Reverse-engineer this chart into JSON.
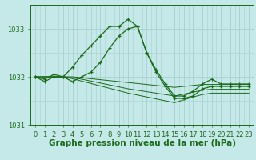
{
  "bg_color": "#c5e8e8",
  "grid_color": "#a8d0d0",
  "line_color": "#1a6b1a",
  "title": "Graphe pression niveau de la mer (hPa)",
  "hours": [
    0,
    1,
    2,
    3,
    4,
    5,
    6,
    7,
    8,
    9,
    10,
    11,
    12,
    13,
    14,
    15,
    16,
    17,
    18,
    19,
    20,
    21,
    22,
    23
  ],
  "series": [
    [
      1032.0,
      1031.9,
      1032.0,
      1032.0,
      1032.2,
      1032.45,
      1032.65,
      1032.85,
      1033.05,
      1033.05,
      1033.2,
      1033.05,
      1032.5,
      1032.15,
      1031.85,
      1031.6,
      1031.6,
      1031.7,
      1031.85,
      1031.95,
      1031.85,
      1031.85,
      1031.85,
      1031.85
    ],
    [
      1032.0,
      1031.95,
      1032.05,
      1032.0,
      1031.9,
      1032.0,
      1032.1,
      1032.3,
      1032.6,
      1032.85,
      1033.0,
      1033.05,
      1032.5,
      1032.1,
      1031.8,
      1031.55,
      1031.55,
      1031.6,
      1031.75,
      1031.8,
      1031.8,
      1031.8,
      1031.8,
      1031.8
    ],
    [
      1032.0,
      1032.0,
      1032.0,
      1032.0,
      1032.0,
      1031.98,
      1031.96,
      1031.94,
      1031.92,
      1031.9,
      1031.88,
      1031.86,
      1031.84,
      1031.82,
      1031.8,
      1031.78,
      1031.8,
      1031.82,
      1031.84,
      1031.84,
      1031.84,
      1031.84,
      1031.84,
      1031.84
    ],
    [
      1032.0,
      1032.0,
      1032.0,
      1032.0,
      1031.98,
      1031.95,
      1031.91,
      1031.87,
      1031.83,
      1031.79,
      1031.75,
      1031.72,
      1031.69,
      1031.66,
      1031.63,
      1031.6,
      1031.64,
      1031.68,
      1031.72,
      1031.74,
      1031.74,
      1031.74,
      1031.74,
      1031.74
    ],
    [
      1032.0,
      1032.0,
      1032.0,
      1032.0,
      1031.96,
      1031.91,
      1031.86,
      1031.81,
      1031.76,
      1031.71,
      1031.66,
      1031.62,
      1031.58,
      1031.54,
      1031.5,
      1031.46,
      1031.52,
      1031.58,
      1031.63,
      1031.66,
      1031.66,
      1031.66,
      1031.66,
      1031.66
    ]
  ],
  "ylim": [
    1031.0,
    1033.5
  ],
  "yticks": [
    1031,
    1032,
    1033
  ],
  "xticks": [
    0,
    1,
    2,
    3,
    4,
    5,
    6,
    7,
    8,
    9,
    10,
    11,
    12,
    13,
    14,
    15,
    16,
    17,
    18,
    19,
    20,
    21,
    22,
    23
  ],
  "title_fontsize": 7.5,
  "tick_fontsize": 6.0,
  "figwidth": 3.2,
  "figheight": 2.0,
  "dpi": 100
}
